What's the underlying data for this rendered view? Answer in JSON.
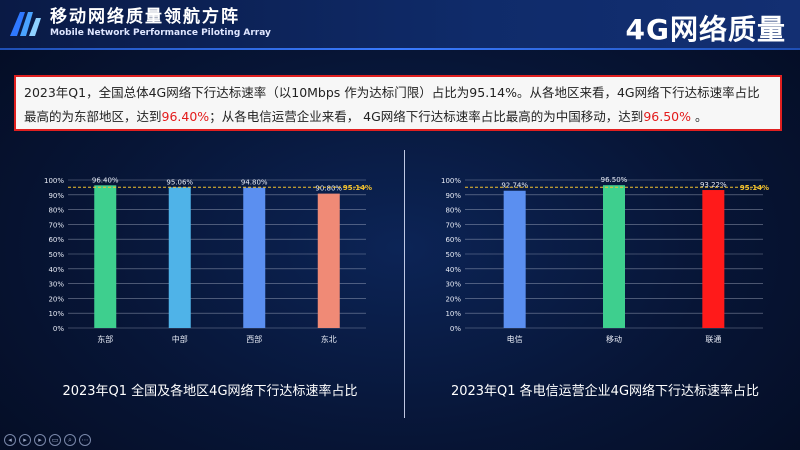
{
  "header": {
    "brand_title": "移动网络质量领航方阵",
    "brand_subtitle": "Mobile Network Performance Piloting Array",
    "page_title": "4G网络质量"
  },
  "summary": {
    "part1": "2023年Q1，全国总体4G网络下行达标速率（以10Mbps 作为达标门限）占比为95.14%。从各地区来看，4G网络下行达标速率占比最高的为东部地区，达到",
    "hl1": "96.40%",
    "part2": "；从各电信运营企业来看， 4G网络下行达标速率占比最高的为中国移动，达到",
    "hl2": "96.50%",
    "part3": " 。"
  },
  "colors": {
    "reference_line": "#f2c12e",
    "grid": "#d0d6e6"
  },
  "chart_data": [
    {
      "type": "bar",
      "categories": [
        "东部",
        "中部",
        "西部",
        "东北"
      ],
      "values": [
        96.4,
        95.06,
        94.8,
        90.8
      ],
      "value_labels": [
        "96.40%",
        "95.06%",
        "94.80%",
        "90.80%"
      ],
      "bar_colors": [
        "#3ecf8e",
        "#4fb3e8",
        "#5b8ff0",
        "#f08a76"
      ],
      "reference": {
        "value": 95.14,
        "label": "95.14%"
      },
      "ylim": [
        0,
        100
      ],
      "yticks": [
        "0%",
        "10%",
        "20%",
        "30%",
        "40%",
        "50%",
        "60%",
        "70%",
        "80%",
        "90%",
        "100%"
      ],
      "caption": "2023年Q1 全国及各地区4G网络下行达标速率占比"
    },
    {
      "type": "bar",
      "categories": [
        "电信",
        "移动",
        "联通"
      ],
      "values": [
        92.74,
        96.5,
        93.22
      ],
      "value_labels": [
        "92.74%",
        "96.50%",
        "93.22%"
      ],
      "bar_colors": [
        "#5b8ff0",
        "#3ecf8e",
        "#ff1a1a"
      ],
      "reference": {
        "value": 95.14,
        "label": "95.14%"
      },
      "ylim": [
        0,
        100
      ],
      "yticks": [
        "0%",
        "10%",
        "20%",
        "30%",
        "40%",
        "50%",
        "60%",
        "70%",
        "80%",
        "90%",
        "100%"
      ],
      "caption": "2023年Q1 各电信运营企业4G网络下行达标速率占比"
    }
  ],
  "footer": {
    "icons": [
      "prev-icon",
      "play-icon",
      "next-icon",
      "slides-icon",
      "search-icon",
      "more-icon"
    ]
  }
}
